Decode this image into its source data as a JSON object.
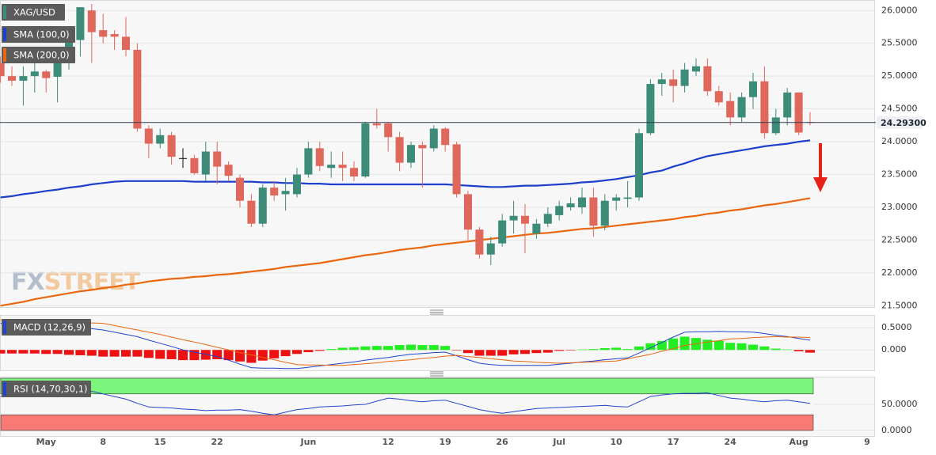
{
  "chart_data": [
    {
      "type": "candlestick",
      "symbol": "XAG/USD",
      "watermark": [
        "FX",
        "STREET"
      ],
      "categories": [
        null,
        null,
        null,
        null,
        "May",
        null,
        null,
        null,
        null,
        "8",
        null,
        null,
        null,
        null,
        "15",
        null,
        null,
        null,
        null,
        "22",
        null,
        null,
        null,
        null,
        null,
        null,
        null,
        "Jun",
        null,
        null,
        null,
        null,
        null,
        null,
        "12",
        null,
        null,
        null,
        null,
        "19",
        null,
        null,
        null,
        null,
        "26",
        null,
        null,
        null,
        null,
        "Jul",
        null,
        null,
        null,
        null,
        "10",
        null,
        null,
        null,
        null,
        "17",
        null,
        null,
        null,
        null,
        "24",
        null,
        null,
        null,
        null,
        null,
        "Aug",
        null,
        null,
        null,
        null,
        null,
        "9"
      ],
      "open": [
        25.2,
        25.0,
        24.93,
        25.0,
        25.07,
        24.99,
        25.3,
        25.55,
        26.0,
        25.7,
        25.64,
        25.6,
        25.4,
        24.2,
        23.97,
        24.1,
        23.75,
        23.75,
        23.5,
        23.85,
        23.65,
        23.45,
        23.1,
        22.75,
        23.3,
        23.2,
        23.2,
        23.5,
        23.9,
        23.6,
        23.65,
        23.6,
        23.47,
        24.28,
        24.28,
        24.07,
        23.68,
        23.95,
        23.9,
        24.2,
        23.96,
        23.2,
        22.66,
        22.28,
        22.45,
        22.8,
        22.87,
        22.6,
        22.75,
        22.88,
        23.0,
        23.0,
        23.15,
        22.72,
        23.1,
        23.13,
        23.15,
        24.13,
        24.88,
        24.95,
        24.85,
        25.07,
        25.15,
        24.77,
        24.62,
        24.37,
        24.68,
        24.92,
        24.13,
        24.37,
        24.75,
        24.3,
        null,
        null,
        null,
        null,
        null
      ],
      "high": [
        25.3,
        25.15,
        25.15,
        25.2,
        25.1,
        25.35,
        25.75,
        26.05,
        26.1,
        25.95,
        25.7,
        25.9,
        25.5,
        24.25,
        24.2,
        24.15,
        23.9,
        23.8,
        24.0,
        24.0,
        23.7,
        23.5,
        23.2,
        23.35,
        23.4,
        23.45,
        23.6,
        24.0,
        24.0,
        23.85,
        23.85,
        23.7,
        24.3,
        24.5,
        24.3,
        24.15,
        24.0,
        24.0,
        24.25,
        24.22,
        24.0,
        23.25,
        22.7,
        22.55,
        22.9,
        23.1,
        23.05,
        22.82,
        23.0,
        23.1,
        23.15,
        23.3,
        23.3,
        23.2,
        23.2,
        23.4,
        24.2,
        24.95,
        25.05,
        25.1,
        25.2,
        25.27,
        25.27,
        24.85,
        24.75,
        24.75,
        25.05,
        25.15,
        24.5,
        24.82,
        24.75,
        24.45,
        null,
        null,
        null,
        null,
        null
      ],
      "low": [
        24.9,
        24.85,
        24.55,
        24.75,
        24.75,
        24.6,
        25.1,
        25.3,
        25.2,
        25.5,
        25.4,
        25.3,
        24.15,
        23.75,
        23.9,
        23.65,
        23.6,
        23.5,
        23.4,
        23.35,
        23.4,
        23.0,
        22.7,
        22.7,
        23.1,
        22.95,
        23.15,
        23.45,
        23.55,
        23.45,
        23.4,
        23.4,
        23.45,
        24.2,
        23.85,
        23.55,
        23.6,
        23.3,
        23.85,
        23.85,
        23.15,
        22.5,
        22.22,
        22.12,
        22.4,
        22.6,
        22.3,
        22.52,
        22.7,
        22.8,
        22.95,
        22.9,
        22.55,
        22.65,
        22.95,
        23.0,
        23.1,
        24.1,
        24.7,
        24.6,
        24.75,
        25.0,
        24.7,
        24.55,
        24.25,
        24.3,
        24.5,
        24.05,
        24.1,
        24.25,
        24.1,
        24.25,
        null,
        null,
        null,
        null,
        null
      ],
      "close": [
        25.0,
        24.93,
        25.0,
        25.07,
        24.97,
        25.3,
        25.6,
        26.05,
        25.67,
        25.6,
        25.6,
        25.4,
        24.2,
        23.97,
        24.1,
        23.77,
        23.75,
        23.52,
        23.85,
        23.62,
        23.48,
        23.1,
        22.75,
        23.3,
        23.18,
        23.25,
        23.5,
        23.9,
        23.63,
        23.65,
        23.6,
        23.47,
        24.28,
        24.25,
        24.07,
        23.68,
        23.95,
        23.9,
        24.2,
        23.95,
        23.2,
        22.66,
        22.28,
        22.45,
        22.8,
        22.87,
        22.75,
        22.75,
        22.9,
        23.02,
        23.06,
        23.15,
        22.72,
        23.1,
        23.15,
        23.15,
        24.13,
        24.88,
        24.95,
        24.85,
        25.1,
        25.15,
        24.77,
        24.6,
        24.37,
        24.68,
        24.92,
        24.13,
        24.37,
        24.75,
        24.14,
        24.29,
        null,
        null,
        null,
        null,
        null
      ],
      "up_color": "#3d8b79",
      "down_color": "#e0675b",
      "series": [
        {
          "name": "SMA (100,0)",
          "color": "#1c3fcc",
          "values": [
            23.15,
            23.17,
            23.2,
            23.22,
            23.25,
            23.27,
            23.3,
            23.32,
            23.35,
            23.37,
            23.39,
            23.4,
            23.4,
            23.4,
            23.4,
            23.4,
            23.4,
            23.39,
            23.39,
            23.39,
            23.39,
            23.39,
            23.39,
            23.38,
            23.38,
            23.37,
            23.37,
            23.36,
            23.36,
            23.35,
            23.35,
            23.35,
            23.35,
            23.35,
            23.35,
            23.35,
            23.35,
            23.35,
            23.35,
            23.35,
            23.34,
            23.33,
            23.32,
            23.31,
            23.31,
            23.32,
            23.33,
            23.33,
            23.34,
            23.35,
            23.36,
            23.38,
            23.39,
            23.41,
            23.43,
            23.46,
            23.49,
            23.53,
            23.56,
            23.62,
            23.67,
            23.73,
            23.78,
            23.81,
            23.84,
            23.87,
            23.9,
            23.93,
            23.95,
            23.97,
            24.0,
            24.02,
            null,
            null,
            null,
            null,
            null
          ]
        },
        {
          "name": "SMA (200,0)",
          "color": "#e8670f",
          "values": [
            21.5,
            21.53,
            21.56,
            21.6,
            21.63,
            21.66,
            21.69,
            21.72,
            21.74,
            21.77,
            21.79,
            21.82,
            21.84,
            21.87,
            21.89,
            21.91,
            21.92,
            21.94,
            21.95,
            21.97,
            21.98,
            22.0,
            22.02,
            22.04,
            22.06,
            22.09,
            22.11,
            22.13,
            22.15,
            22.18,
            22.21,
            22.24,
            22.27,
            22.29,
            22.32,
            22.35,
            22.37,
            22.39,
            22.42,
            22.44,
            22.46,
            22.48,
            22.5,
            22.52,
            22.54,
            22.56,
            22.58,
            22.6,
            22.61,
            22.63,
            22.65,
            22.67,
            22.68,
            22.7,
            22.72,
            22.74,
            22.76,
            22.78,
            22.8,
            22.82,
            22.85,
            22.87,
            22.9,
            22.92,
            22.95,
            22.97,
            23.0,
            23.03,
            23.05,
            23.08,
            23.11,
            23.14,
            null,
            null,
            null,
            null,
            null
          ]
        }
      ],
      "last_price": {
        "value": 24.293,
        "label": "24.29300"
      },
      "ylim": [
        21.48,
        26.16
      ],
      "yticks": [
        {
          "value": 21.5,
          "label": "21.5000"
        },
        {
          "value": 22.0,
          "label": "22.0000"
        },
        {
          "value": 22.5,
          "label": "22.5000"
        },
        {
          "value": 23.0,
          "label": "23.0000"
        },
        {
          "value": 23.5,
          "label": "23.5000"
        },
        {
          "value": 24.0,
          "label": "24.0000"
        },
        {
          "value": 24.5,
          "label": "24.5000"
        },
        {
          "value": 25.0,
          "label": "25.0000"
        },
        {
          "value": 25.5,
          "label": "25.5000"
        },
        {
          "value": 26.0,
          "label": "26.0000"
        }
      ],
      "grid": true
    },
    {
      "type": "macd",
      "name": "MACD (12,26,9)",
      "macd": {
        "color": "#2244cc",
        "values": [
          0.6,
          0.59,
          0.58,
          0.57,
          0.56,
          0.55,
          0.52,
          0.5,
          0.48,
          0.45,
          0.4,
          0.35,
          0.3,
          0.22,
          0.15,
          0.08,
          0,
          -0.05,
          -0.1,
          -0.15,
          -0.23,
          -0.32,
          -0.4,
          -0.41,
          -0.41,
          -0.42,
          -0.42,
          -0.39,
          -0.36,
          -0.33,
          -0.3,
          -0.27,
          -0.23,
          -0.2,
          -0.17,
          -0.13,
          -0.1,
          -0.08,
          -0.06,
          -0.05,
          -0.13,
          -0.22,
          -0.3,
          -0.33,
          -0.35,
          -0.35,
          -0.35,
          -0.35,
          -0.35,
          -0.32,
          -0.3,
          -0.27,
          -0.25,
          -0.22,
          -0.2,
          -0.18,
          -0.07,
          0.05,
          0.17,
          0.29,
          0.4,
          0.41,
          0.41,
          0.42,
          0.41,
          0.41,
          0.4,
          0.37,
          0.33,
          0.3,
          0.26,
          0.22,
          null,
          null,
          null,
          null,
          null
        ]
      },
      "signal": {
        "color": "#e8670f",
        "values": [
          0.68,
          0.67,
          0.66,
          0.65,
          0.65,
          0.64,
          0.63,
          0.62,
          0.61,
          0.6,
          0.55,
          0.5,
          0.45,
          0.4,
          0.35,
          0.29,
          0.23,
          0.18,
          0.12,
          0.06,
          0,
          -0.06,
          -0.11,
          -0.17,
          -0.22,
          -0.28,
          -0.33,
          -0.34,
          -0.34,
          -0.35,
          -0.35,
          -0.33,
          -0.31,
          -0.29,
          -0.26,
          -0.24,
          -0.22,
          -0.19,
          -0.17,
          -0.14,
          -0.12,
          -0.15,
          -0.17,
          -0.2,
          -0.22,
          -0.25,
          -0.26,
          -0.28,
          -0.29,
          -0.3,
          -0.29,
          -0.28,
          -0.27,
          -0.26,
          -0.25,
          -0.2,
          -0.15,
          -0.1,
          -0.03,
          0.03,
          0.1,
          0.14,
          0.18,
          0.21,
          0.25,
          0.26,
          0.28,
          0.29,
          0.3,
          0.29,
          0.29,
          0.28,
          null,
          null,
          null,
          null,
          null
        ]
      },
      "histogram": {
        "up_color": "#22ee22",
        "down_color": "#ee1111",
        "values": [
          -0.08,
          -0.08,
          -0.08,
          -0.08,
          -0.09,
          -0.09,
          -0.11,
          -0.12,
          -0.13,
          -0.15,
          -0.15,
          -0.15,
          -0.15,
          -0.18,
          -0.2,
          -0.21,
          -0.23,
          -0.23,
          -0.22,
          -0.21,
          -0.23,
          -0.26,
          -0.29,
          -0.24,
          -0.19,
          -0.14,
          -0.09,
          -0.05,
          -0.02,
          0.02,
          0.05,
          0.06,
          0.08,
          0.09,
          0.09,
          0.11,
          0.12,
          0.11,
          0.11,
          0.09,
          -0.01,
          -0.07,
          -0.13,
          -0.13,
          -0.13,
          -0.1,
          -0.09,
          -0.07,
          -0.06,
          -0.02,
          -0.01,
          0.01,
          0.02,
          0.04,
          0.05,
          0.02,
          0.08,
          0.15,
          0.2,
          0.26,
          0.3,
          0.27,
          0.23,
          0.21,
          0.16,
          0.15,
          0.12,
          0.08,
          0.03,
          0.01,
          -0.03,
          -0.06,
          null,
          null,
          null,
          null,
          null
        ]
      },
      "ylim": [
        -0.46,
        0.79
      ],
      "yticks": [
        {
          "value": 0,
          "label": "0.000"
        },
        {
          "value": 0.5,
          "label": "0.5000"
        }
      ]
    },
    {
      "type": "rsi",
      "name": "RSI (14,70,30,1)",
      "color": "#2244cc",
      "values": [
        65,
        66,
        67,
        68,
        69,
        70,
        72,
        73,
        75,
        70,
        65,
        60,
        52,
        45,
        44,
        43,
        41,
        40,
        38,
        39,
        39,
        40,
        37,
        33,
        30,
        35,
        40,
        42,
        45,
        46,
        47,
        49,
        50,
        56,
        62,
        60,
        57,
        55,
        57,
        58,
        52,
        46,
        40,
        36,
        33,
        36,
        39,
        42,
        43,
        44,
        45,
        46,
        47,
        48,
        46,
        45,
        55,
        65,
        68,
        70,
        71,
        71,
        72,
        67,
        62,
        60,
        57,
        55,
        57,
        58,
        55,
        52,
        null,
        null,
        null,
        null,
        null
      ],
      "overbought": 70,
      "oversold": 30,
      "overbought_color": "#7cf57c",
      "oversold_color": "#f77b74",
      "ylim": [
        -10.6,
        103
      ],
      "yticks": [
        {
          "value": 0,
          "label": "0.0000"
        },
        {
          "value": 50,
          "label": "50.0000"
        }
      ]
    }
  ]
}
